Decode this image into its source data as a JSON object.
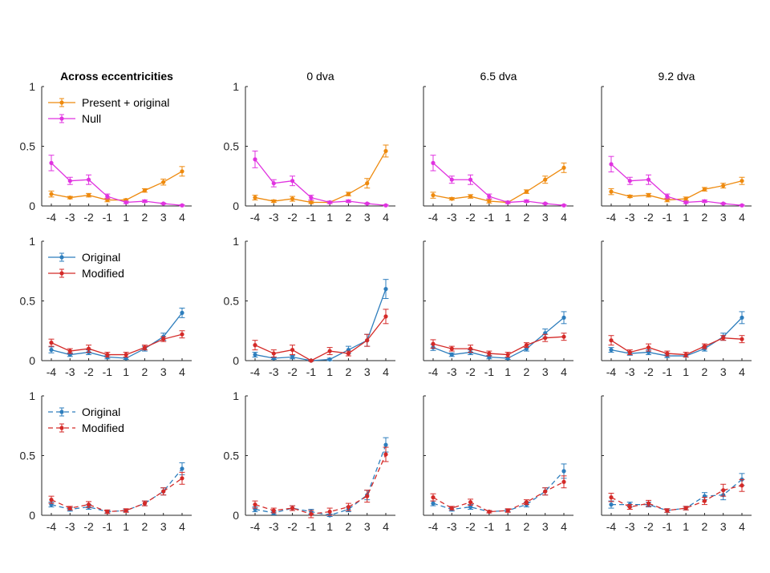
{
  "chart_data": {
    "type": "line",
    "x": [
      -4,
      -3,
      -2,
      -1,
      1,
      2,
      3,
      4
    ],
    "x_tick_labels": [
      "-4",
      "-3",
      "-2",
      "-1",
      "1",
      "2",
      "3",
      "4"
    ],
    "ylim": [
      0,
      1
    ],
    "y_tick_labels": [
      "0",
      "0.5",
      "1"
    ],
    "grid": false,
    "column_titles": [
      "Across eccentricities",
      "0 dva",
      "6.5 dva",
      "9.2 dva"
    ],
    "colors": {
      "orange": "#EE8A0E",
      "magenta": "#E033E0",
      "blue": "#2E7EBD",
      "red": "#D42A28"
    },
    "rows": [
      {
        "legend": [
          {
            "label": "Present + original",
            "color": "#EE8A0E",
            "dashed": false
          },
          {
            "label": "Null",
            "color": "#E033E0",
            "dashed": false
          }
        ],
        "panels": [
          {
            "series": [
              {
                "name": "Present + original",
                "color": "#EE8A0E",
                "dashed": false,
                "values": [
                  0.1,
                  0.07,
                  0.09,
                  0.05,
                  0.05,
                  0.13,
                  0.2,
                  0.29
                ],
                "errors": [
                  0.025,
                  0.01,
                  0.015,
                  0.015,
                  0.01,
                  0.015,
                  0.025,
                  0.04
                ]
              },
              {
                "name": "Null",
                "color": "#E033E0",
                "dashed": false,
                "values": [
                  0.36,
                  0.21,
                  0.22,
                  0.08,
                  0.03,
                  0.04,
                  0.02,
                  0.005
                ],
                "errors": [
                  0.065,
                  0.03,
                  0.04,
                  0.02,
                  0.01,
                  0.01,
                  0.005,
                  0.005
                ]
              }
            ]
          },
          {
            "series": [
              {
                "name": "Present + original",
                "color": "#EE8A0E",
                "dashed": false,
                "values": [
                  0.07,
                  0.04,
                  0.06,
                  0.03,
                  0.03,
                  0.1,
                  0.19,
                  0.46
                ],
                "errors": [
                  0.02,
                  0.01,
                  0.02,
                  0.01,
                  0.01,
                  0.015,
                  0.04,
                  0.05
                ]
              },
              {
                "name": "Null",
                "color": "#E033E0",
                "dashed": false,
                "values": [
                  0.39,
                  0.19,
                  0.21,
                  0.07,
                  0.03,
                  0.04,
                  0.02,
                  0.005
                ],
                "errors": [
                  0.07,
                  0.03,
                  0.04,
                  0.02,
                  0.01,
                  0.01,
                  0.005,
                  0.005
                ]
              }
            ]
          },
          {
            "series": [
              {
                "name": "Present + original",
                "color": "#EE8A0E",
                "dashed": false,
                "values": [
                  0.09,
                  0.06,
                  0.08,
                  0.04,
                  0.03,
                  0.12,
                  0.22,
                  0.32
                ],
                "errors": [
                  0.025,
                  0.01,
                  0.015,
                  0.015,
                  0.01,
                  0.015,
                  0.03,
                  0.04
                ]
              },
              {
                "name": "Null",
                "color": "#E033E0",
                "dashed": false,
                "values": [
                  0.36,
                  0.22,
                  0.22,
                  0.08,
                  0.03,
                  0.04,
                  0.02,
                  0.005
                ],
                "errors": [
                  0.065,
                  0.03,
                  0.04,
                  0.02,
                  0.01,
                  0.01,
                  0.005,
                  0.005
                ]
              }
            ]
          },
          {
            "series": [
              {
                "name": "Present + original",
                "color": "#EE8A0E",
                "dashed": false,
                "values": [
                  0.12,
                  0.08,
                  0.09,
                  0.05,
                  0.06,
                  0.14,
                  0.17,
                  0.21
                ],
                "errors": [
                  0.025,
                  0.01,
                  0.015,
                  0.015,
                  0.015,
                  0.015,
                  0.02,
                  0.03
                ]
              },
              {
                "name": "Null",
                "color": "#E033E0",
                "dashed": false,
                "values": [
                  0.35,
                  0.21,
                  0.22,
                  0.08,
                  0.03,
                  0.04,
                  0.02,
                  0.005
                ],
                "errors": [
                  0.065,
                  0.03,
                  0.04,
                  0.02,
                  0.01,
                  0.01,
                  0.005,
                  0.005
                ]
              }
            ]
          }
        ]
      },
      {
        "legend": [
          {
            "label": "Original",
            "color": "#2E7EBD",
            "dashed": false
          },
          {
            "label": "Modified",
            "color": "#D42A28",
            "dashed": false
          }
        ],
        "panels": [
          {
            "series": [
              {
                "name": "Original",
                "color": "#2E7EBD",
                "dashed": false,
                "values": [
                  0.09,
                  0.05,
                  0.07,
                  0.03,
                  0.02,
                  0.1,
                  0.2,
                  0.4
                ],
                "errors": [
                  0.025,
                  0.015,
                  0.02,
                  0.015,
                  0.01,
                  0.02,
                  0.03,
                  0.04
                ]
              },
              {
                "name": "Modified",
                "color": "#D42A28",
                "dashed": false,
                "values": [
                  0.15,
                  0.08,
                  0.1,
                  0.05,
                  0.05,
                  0.11,
                  0.18,
                  0.22
                ],
                "errors": [
                  0.03,
                  0.02,
                  0.03,
                  0.02,
                  0.02,
                  0.02,
                  0.02,
                  0.03
                ]
              }
            ]
          },
          {
            "series": [
              {
                "name": "Original",
                "color": "#2E7EBD",
                "dashed": false,
                "values": [
                  0.05,
                  0.02,
                  0.03,
                  0.0,
                  0.01,
                  0.09,
                  0.17,
                  0.6
                ],
                "errors": [
                  0.02,
                  0.01,
                  0.015,
                  0.005,
                  0.01,
                  0.03,
                  0.05,
                  0.08
                ]
              },
              {
                "name": "Modified",
                "color": "#D42A28",
                "dashed": false,
                "values": [
                  0.13,
                  0.06,
                  0.09,
                  0.0,
                  0.08,
                  0.06,
                  0.17,
                  0.37
                ],
                "errors": [
                  0.04,
                  0.03,
                  0.04,
                  0.005,
                  0.03,
                  0.02,
                  0.05,
                  0.06
                ]
              }
            ]
          },
          {
            "series": [
              {
                "name": "Original",
                "color": "#2E7EBD",
                "dashed": false,
                "values": [
                  0.11,
                  0.05,
                  0.07,
                  0.03,
                  0.02,
                  0.1,
                  0.23,
                  0.36
                ],
                "errors": [
                  0.025,
                  0.015,
                  0.02,
                  0.015,
                  0.01,
                  0.02,
                  0.035,
                  0.05
                ]
              },
              {
                "name": "Modified",
                "color": "#D42A28",
                "dashed": false,
                "values": [
                  0.14,
                  0.1,
                  0.1,
                  0.06,
                  0.05,
                  0.13,
                  0.19,
                  0.2
                ],
                "errors": [
                  0.035,
                  0.02,
                  0.03,
                  0.02,
                  0.02,
                  0.02,
                  0.03,
                  0.03
                ]
              }
            ]
          },
          {
            "series": [
              {
                "name": "Original",
                "color": "#2E7EBD",
                "dashed": false,
                "values": [
                  0.09,
                  0.06,
                  0.07,
                  0.04,
                  0.04,
                  0.1,
                  0.2,
                  0.36
                ],
                "errors": [
                  0.02,
                  0.015,
                  0.02,
                  0.015,
                  0.01,
                  0.02,
                  0.03,
                  0.05
                ]
              },
              {
                "name": "Modified",
                "color": "#D42A28",
                "dashed": false,
                "values": [
                  0.17,
                  0.07,
                  0.11,
                  0.06,
                  0.05,
                  0.12,
                  0.19,
                  0.18
                ],
                "errors": [
                  0.04,
                  0.02,
                  0.03,
                  0.02,
                  0.02,
                  0.02,
                  0.02,
                  0.03
                ]
              }
            ]
          }
        ]
      },
      {
        "legend": [
          {
            "label": "Original",
            "color": "#2E7EBD",
            "dashed": true
          },
          {
            "label": "Modified",
            "color": "#D42A28",
            "dashed": true
          }
        ],
        "panels": [
          {
            "series": [
              {
                "name": "Original",
                "color": "#2E7EBD",
                "dashed": true,
                "values": [
                  0.09,
                  0.05,
                  0.07,
                  0.03,
                  0.04,
                  0.1,
                  0.2,
                  0.39
                ],
                "errors": [
                  0.02,
                  0.015,
                  0.02,
                  0.01,
                  0.01,
                  0.02,
                  0.03,
                  0.05
                ]
              },
              {
                "name": "Modified",
                "color": "#D42A28",
                "dashed": true,
                "values": [
                  0.13,
                  0.06,
                  0.09,
                  0.03,
                  0.04,
                  0.1,
                  0.2,
                  0.31
                ],
                "errors": [
                  0.03,
                  0.015,
                  0.025,
                  0.015,
                  0.015,
                  0.02,
                  0.03,
                  0.05
                ]
              }
            ]
          },
          {
            "series": [
              {
                "name": "Original",
                "color": "#2E7EBD",
                "dashed": true,
                "values": [
                  0.05,
                  0.02,
                  0.06,
                  0.03,
                  0.0,
                  0.05,
                  0.17,
                  0.59
                ],
                "errors": [
                  0.02,
                  0.015,
                  0.02,
                  0.02,
                  0.01,
                  0.02,
                  0.04,
                  0.06
                ]
              },
              {
                "name": "Modified",
                "color": "#D42A28",
                "dashed": true,
                "values": [
                  0.09,
                  0.04,
                  0.06,
                  0.01,
                  0.03,
                  0.07,
                  0.16,
                  0.51
                ],
                "errors": [
                  0.03,
                  0.02,
                  0.02,
                  0.03,
                  0.03,
                  0.03,
                  0.05,
                  0.06
                ]
              }
            ]
          },
          {
            "series": [
              {
                "name": "Original",
                "color": "#2E7EBD",
                "dashed": true,
                "values": [
                  0.1,
                  0.05,
                  0.07,
                  0.03,
                  0.04,
                  0.09,
                  0.2,
                  0.37
                ],
                "errors": [
                  0.02,
                  0.015,
                  0.02,
                  0.01,
                  0.01,
                  0.02,
                  0.03,
                  0.06
                ]
              },
              {
                "name": "Modified",
                "color": "#D42A28",
                "dashed": true,
                "values": [
                  0.15,
                  0.06,
                  0.11,
                  0.03,
                  0.04,
                  0.11,
                  0.2,
                  0.28
                ],
                "errors": [
                  0.03,
                  0.015,
                  0.025,
                  0.01,
                  0.015,
                  0.02,
                  0.03,
                  0.05
                ]
              }
            ]
          },
          {
            "series": [
              {
                "name": "Original",
                "color": "#2E7EBD",
                "dashed": true,
                "values": [
                  0.09,
                  0.09,
                  0.09,
                  0.04,
                  0.06,
                  0.16,
                  0.17,
                  0.3
                ],
                "errors": [
                  0.03,
                  0.02,
                  0.02,
                  0.015,
                  0.015,
                  0.03,
                  0.04,
                  0.05
                ]
              },
              {
                "name": "Modified",
                "color": "#D42A28",
                "dashed": true,
                "values": [
                  0.15,
                  0.07,
                  0.1,
                  0.04,
                  0.06,
                  0.12,
                  0.21,
                  0.25
                ],
                "errors": [
                  0.035,
                  0.02,
                  0.025,
                  0.015,
                  0.015,
                  0.03,
                  0.05,
                  0.05
                ]
              }
            ]
          }
        ]
      }
    ]
  }
}
